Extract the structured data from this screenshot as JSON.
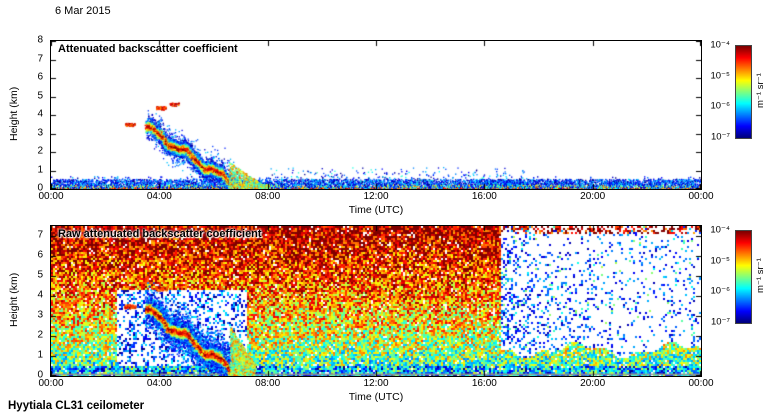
{
  "date_label": "6 Mar 2015",
  "footer_label": "Hyytiala CL31 ceilometer",
  "xlabel": "Time (UTC)",
  "ylabel": "Height (km)",
  "x_ticks": [
    "00:00",
    "04:00",
    "08:00",
    "12:00",
    "16:00",
    "20:00",
    "00:00"
  ],
  "colorbar": {
    "ticks": [
      "10⁻⁴",
      "10⁻⁵",
      "10⁻⁶",
      "10⁻⁷"
    ],
    "unit": "m⁻¹ sr⁻¹",
    "colormap": "jet",
    "stops": [
      "#000080",
      "#0000ff",
      "#00ffff",
      "#ffff00",
      "#ff0000",
      "#800000"
    ]
  },
  "panels": [
    {
      "title": "Attenuated backscatter coefficient",
      "ymax": 8,
      "y_ticks": [
        "8",
        "7",
        "6",
        "5",
        "4",
        "3",
        "2",
        "1",
        "0"
      ]
    },
    {
      "title": "Raw attenuated backscatter coefficient",
      "ymax": 7.5,
      "y_ticks": [
        "7",
        "6",
        "5",
        "4",
        "3",
        "2",
        "1",
        "0"
      ]
    }
  ],
  "chart_data": [
    {
      "type": "heatmap",
      "title": "Attenuated backscatter coefficient",
      "xlabel": "Time (UTC)",
      "ylabel": "Height (km)",
      "x_range_hours": [
        0,
        24
      ],
      "x_tick_labels": [
        "00:00",
        "04:00",
        "08:00",
        "12:00",
        "16:00",
        "20:00",
        "00:00"
      ],
      "ylim": [
        0,
        8
      ],
      "color_scale": {
        "type": "log",
        "min": 1e-07,
        "max": 0.0001,
        "unit": "m⁻¹ sr⁻¹",
        "colormap": "jet"
      },
      "features": [
        {
          "name": "surface-aerosol-layer",
          "hours": [
            0,
            24
          ],
          "height_km": [
            0,
            0.5
          ],
          "description": "continuous shallow layer all day; strongest (~1e-5 to 1e-4, red) below 0.1 km, weaker blue/green speckle up to ~0.5 km"
        },
        {
          "name": "descending-aerosol-layer",
          "start": {
            "hour": 3.5,
            "height_km": 3.35
          },
          "end": {
            "hour": 6.9,
            "height_km": 0.1
          },
          "thickness_km": 0.5,
          "peak_backscatter": 0.0001,
          "description": "strong red layer descending from ~3.4 km at ~03:30 UTC to the surface by ~07:00 UTC, yellow/green fringes"
        },
        {
          "name": "detached-aerosol-patches",
          "points": [
            {
              "hour": 2.9,
              "height_km": 3.5
            },
            {
              "hour": 4.05,
              "height_km": 4.4
            },
            {
              "hour": 4.55,
              "height_km": 4.6
            }
          ]
        },
        {
          "name": "afternoon-specks",
          "hours": [
            15.8,
            17.4
          ],
          "height_km": [
            0,
            1
          ],
          "description": "slightly enhanced shallow returns around 16:00-17:00 UTC"
        }
      ]
    },
    {
      "type": "heatmap",
      "title": "Raw attenuated backscatter coefficient",
      "xlabel": "Time (UTC)",
      "ylabel": "Height (km)",
      "x_range_hours": [
        0,
        24
      ],
      "x_tick_labels": [
        "00:00",
        "04:00",
        "08:00",
        "12:00",
        "16:00",
        "20:00",
        "00:00"
      ],
      "ylim": [
        0,
        7.5
      ],
      "color_scale": {
        "type": "log",
        "min": 1e-07,
        "max": 0.0001,
        "unit": "m⁻¹ sr⁻¹",
        "colormap": "jet"
      },
      "features": [
        {
          "name": "range-dependent-noise",
          "description": "dense speckle noise over the whole day, increasing from blue/cyan near the surface through green/yellow at mid levels to red/dark-red above ~6 km"
        },
        {
          "name": "descending-aerosol-layer",
          "start": {
            "hour": 3.5,
            "height_km": 3.35
          },
          "end": {
            "hour": 6.9,
            "height_km": 0.1
          },
          "thickness_km": 0.5,
          "peak_backscatter": 0.0001
        },
        {
          "name": "detached-aerosol-patches",
          "points": [
            {
              "hour": 2.9,
              "height_km": 3.5
            },
            {
              "hour": 4.05,
              "height_km": 4.4
            }
          ]
        },
        {
          "name": "low-noise-wedge",
          "hours": [
            2.4,
            7.2
          ],
          "height_km": [
            0.5,
            4.3
          ],
          "description": "white/blue low-noise region surrounding the descending layer between ~02:30 and ~07:00 UTC"
        },
        {
          "name": "signal-dropout-region",
          "hours": [
            16.6,
            24
          ],
          "height_km": [
            1.5,
            7.5
          ],
          "description": "mostly white area with sparse blue/cyan speckle after ~16:30 UTC above ~1.5 km, ragged lower edge"
        },
        {
          "name": "surface-echo-line",
          "height_km": 0.12,
          "description": "thin gray line near the surface across the full day"
        }
      ]
    }
  ]
}
